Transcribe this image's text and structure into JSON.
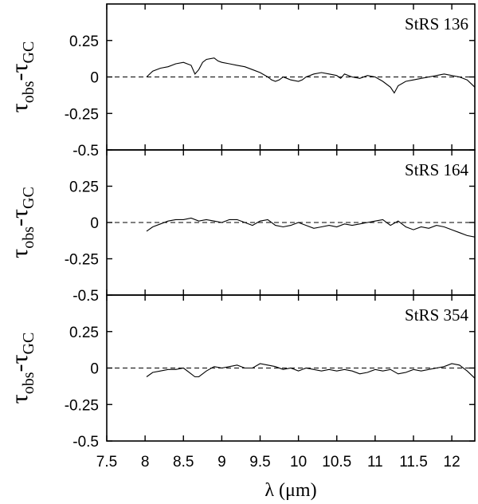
{
  "chart_data": [
    {
      "type": "line",
      "annotation": "StRS 136",
      "ylabel_main": "τ",
      "ylabel_sub1": "obs",
      "ylabel_mid": "-τ",
      "ylabel_sub2": "GC",
      "xlim": [
        7.5,
        12.3
      ],
      "ylim": [
        -0.5,
        0.5
      ],
      "yticks": [
        "0.25",
        "0",
        "-0.25",
        "-0.5"
      ],
      "ytick_values": [
        0.25,
        0,
        -0.25,
        -0.5
      ],
      "reference_line": 0,
      "series": [
        {
          "x": [
            8.02,
            8.1,
            8.2,
            8.3,
            8.4,
            8.5,
            8.6,
            8.65,
            8.7,
            8.75,
            8.8,
            8.9,
            8.95,
            9.0,
            9.1,
            9.2,
            9.3,
            9.4,
            9.5,
            9.6,
            9.65,
            9.7,
            9.75,
            9.8,
            9.85,
            9.9,
            10.0,
            10.05,
            10.1,
            10.2,
            10.3,
            10.4,
            10.5,
            10.55,
            10.6,
            10.7,
            10.8,
            10.9,
            11.0,
            11.1,
            11.2,
            11.25,
            11.3,
            11.4,
            11.5,
            11.6,
            11.7,
            11.8,
            11.9,
            12.0,
            12.1,
            12.2,
            12.3
          ],
          "y": [
            0.0,
            0.04,
            0.06,
            0.07,
            0.09,
            0.1,
            0.08,
            0.02,
            0.05,
            0.1,
            0.12,
            0.13,
            0.11,
            0.1,
            0.09,
            0.08,
            0.07,
            0.05,
            0.03,
            0.0,
            -0.02,
            -0.03,
            -0.02,
            0.0,
            -0.01,
            -0.02,
            -0.03,
            -0.02,
            0.0,
            0.02,
            0.03,
            0.02,
            0.01,
            -0.01,
            0.02,
            0.0,
            -0.01,
            0.01,
            0.0,
            -0.03,
            -0.07,
            -0.11,
            -0.06,
            -0.03,
            -0.02,
            -0.01,
            0.0,
            0.01,
            0.02,
            0.01,
            0.0,
            -0.02,
            -0.07
          ]
        }
      ]
    },
    {
      "type": "line",
      "annotation": "StRS 164",
      "ylabel_main": "τ",
      "ylabel_sub1": "obs",
      "ylabel_mid": "-τ",
      "ylabel_sub2": "GC",
      "xlim": [
        7.5,
        12.3
      ],
      "ylim": [
        -0.5,
        0.5
      ],
      "yticks": [
        "0.25",
        "0",
        "-0.25",
        "-0.5"
      ],
      "ytick_values": [
        0.25,
        0,
        -0.25,
        -0.5
      ],
      "reference_line": 0,
      "series": [
        {
          "x": [
            8.02,
            8.1,
            8.2,
            8.3,
            8.4,
            8.5,
            8.6,
            8.7,
            8.8,
            8.9,
            9.0,
            9.1,
            9.2,
            9.3,
            9.4,
            9.5,
            9.6,
            9.7,
            9.8,
            9.9,
            10.0,
            10.1,
            10.2,
            10.3,
            10.4,
            10.5,
            10.6,
            10.7,
            10.8,
            10.9,
            11.0,
            11.1,
            11.2,
            11.3,
            11.4,
            11.5,
            11.6,
            11.7,
            11.8,
            11.9,
            12.0,
            12.1,
            12.2,
            12.3
          ],
          "y": [
            -0.06,
            -0.03,
            -0.01,
            0.01,
            0.02,
            0.02,
            0.03,
            0.01,
            0.02,
            0.01,
            0.0,
            0.02,
            0.02,
            0.0,
            -0.02,
            0.01,
            0.02,
            -0.02,
            -0.03,
            -0.02,
            0.0,
            -0.02,
            -0.04,
            -0.03,
            -0.02,
            -0.03,
            -0.01,
            -0.02,
            -0.01,
            0.0,
            0.01,
            0.02,
            -0.02,
            0.01,
            -0.03,
            -0.05,
            -0.03,
            -0.04,
            -0.02,
            -0.03,
            -0.05,
            -0.07,
            -0.09,
            -0.1
          ]
        }
      ]
    },
    {
      "type": "line",
      "annotation": "StRS 354",
      "ylabel_main": "τ",
      "ylabel_sub1": "obs",
      "ylabel_mid": "-τ",
      "ylabel_sub2": "GC",
      "xlim": [
        7.5,
        12.3
      ],
      "ylim": [
        -0.5,
        0.5
      ],
      "yticks": [
        "0.25",
        "0",
        "-0.25",
        "-0.5"
      ],
      "ytick_values": [
        0.25,
        0,
        -0.25,
        -0.5
      ],
      "xticks": [
        "7.5",
        "8",
        "8.5",
        "9",
        "9.5",
        "10",
        "10.5",
        "11",
        "11.5",
        "12"
      ],
      "xtick_values": [
        7.5,
        8,
        8.5,
        9,
        9.5,
        10,
        10.5,
        11,
        11.5,
        12
      ],
      "xlabel": "λ (μm)",
      "reference_line": 0,
      "series": [
        {
          "x": [
            8.02,
            8.1,
            8.2,
            8.3,
            8.4,
            8.5,
            8.6,
            8.65,
            8.7,
            8.8,
            8.9,
            9.0,
            9.1,
            9.2,
            9.3,
            9.4,
            9.5,
            9.6,
            9.7,
            9.8,
            9.9,
            10.0,
            10.1,
            10.2,
            10.3,
            10.4,
            10.5,
            10.6,
            10.7,
            10.8,
            10.9,
            11.0,
            11.1,
            11.2,
            11.3,
            11.4,
            11.5,
            11.6,
            11.7,
            11.8,
            11.9,
            12.0,
            12.1,
            12.2,
            12.3
          ],
          "y": [
            -0.06,
            -0.03,
            -0.02,
            -0.01,
            -0.01,
            0.0,
            -0.04,
            -0.06,
            -0.06,
            -0.02,
            0.01,
            0.0,
            0.01,
            0.02,
            0.0,
            0.0,
            0.03,
            0.02,
            0.01,
            -0.01,
            0.0,
            -0.02,
            0.0,
            -0.01,
            -0.02,
            -0.01,
            -0.02,
            -0.01,
            -0.02,
            -0.04,
            -0.03,
            -0.01,
            -0.02,
            -0.01,
            -0.04,
            -0.03,
            -0.01,
            -0.02,
            -0.01,
            0.0,
            0.01,
            0.03,
            0.02,
            -0.02,
            -0.07
          ]
        }
      ]
    }
  ]
}
